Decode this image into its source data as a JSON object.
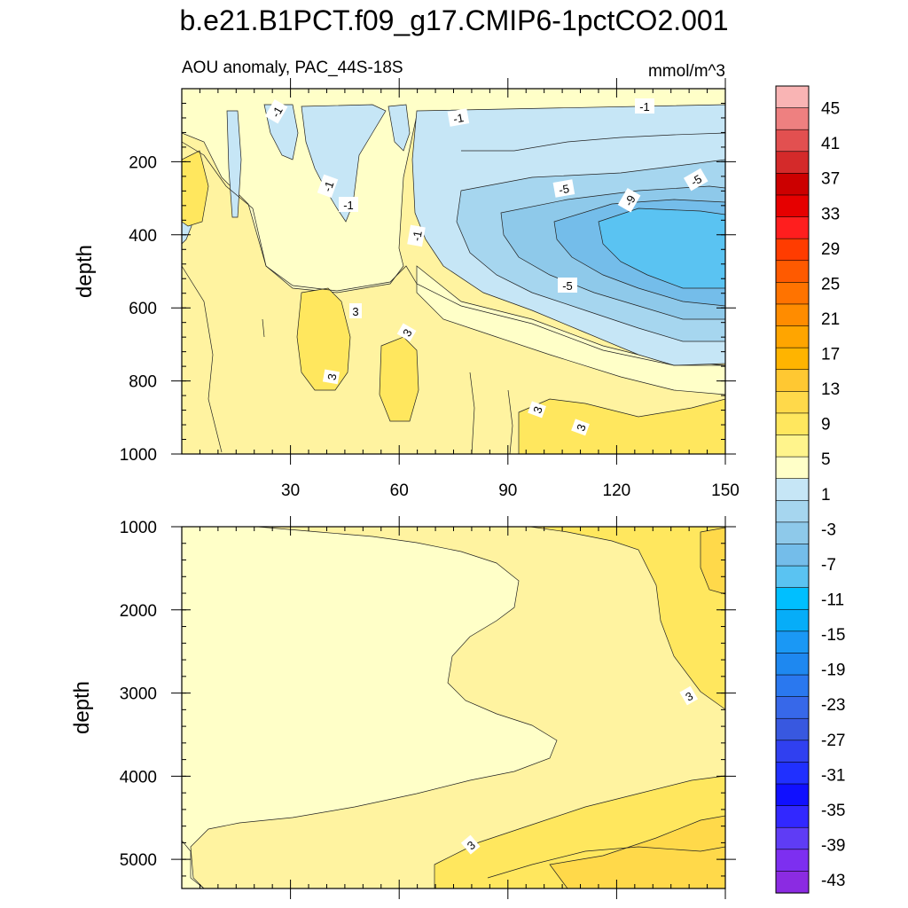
{
  "chart_data": {
    "type": "contour",
    "title": "b.e21.B1PCT.f09_g17.CMIP6-1pctCO2.001",
    "subtitle_left": "AOU anomaly, PAC_44S-18S",
    "subtitle_right": "mmol/m^3",
    "ylabel": "depth",
    "colorbar": {
      "levels": [
        45,
        41,
        37,
        33,
        29,
        25,
        21,
        17,
        13,
        9,
        5,
        1,
        -3,
        -7,
        -11,
        -15,
        -19,
        -23,
        -27,
        -31,
        -35,
        -39,
        -43
      ],
      "tick_labels": [
        "45",
        "41",
        "37",
        "33",
        "29",
        "25",
        "21",
        "17",
        "13",
        "9",
        "5",
        "1",
        "-3",
        "-7",
        "-11",
        "-15",
        "-19",
        "-23",
        "-27",
        "-31",
        "-35",
        "-39",
        "-43"
      ],
      "colors": [
        "#f9b4b4",
        "#ee8080",
        "#e25050",
        "#d42a2a",
        "#cc0000",
        "#e60000",
        "#ff1e1e",
        "#ff3c00",
        "#ff5a00",
        "#ff7300",
        "#ff8c00",
        "#ffa500",
        "#ffb400",
        "#ffc832",
        "#ffd94a",
        "#ffe75e",
        "#fff48c",
        "#ffffc8",
        "#c6e6f6",
        "#a6d6ef",
        "#8ec9ea",
        "#74bdea",
        "#5ac3f2",
        "#00bfff",
        "#06adf8",
        "#1a98f5",
        "#1e88f0",
        "#2a78ef",
        "#3768e9",
        "#3858e0",
        "#3040f0",
        "#2030ff",
        "#1010ff",
        "#3228ff",
        "#5f3cf5",
        "#7d2ff0",
        "#8b2be2"
      ]
    },
    "panels": [
      {
        "name": "upper",
        "xlim": [
          0,
          150
        ],
        "ylim": [
          1000,
          0
        ],
        "xticks": [
          30,
          60,
          90,
          120,
          150
        ],
        "yticks": [
          200,
          400,
          600,
          800,
          1000
        ],
        "contour_labels": [
          "-1",
          "-1",
          "-1",
          "-1",
          "-1",
          "-1",
          "-5",
          "-5",
          "-5",
          "-9",
          "3",
          "3",
          "3",
          "3",
          "3"
        ]
      },
      {
        "name": "lower",
        "xlim": [
          0,
          150
        ],
        "ylim": [
          5350,
          1000
        ],
        "yticks": [
          1000,
          2000,
          3000,
          4000,
          5000
        ],
        "contour_labels": [
          "3",
          "3"
        ]
      }
    ]
  }
}
